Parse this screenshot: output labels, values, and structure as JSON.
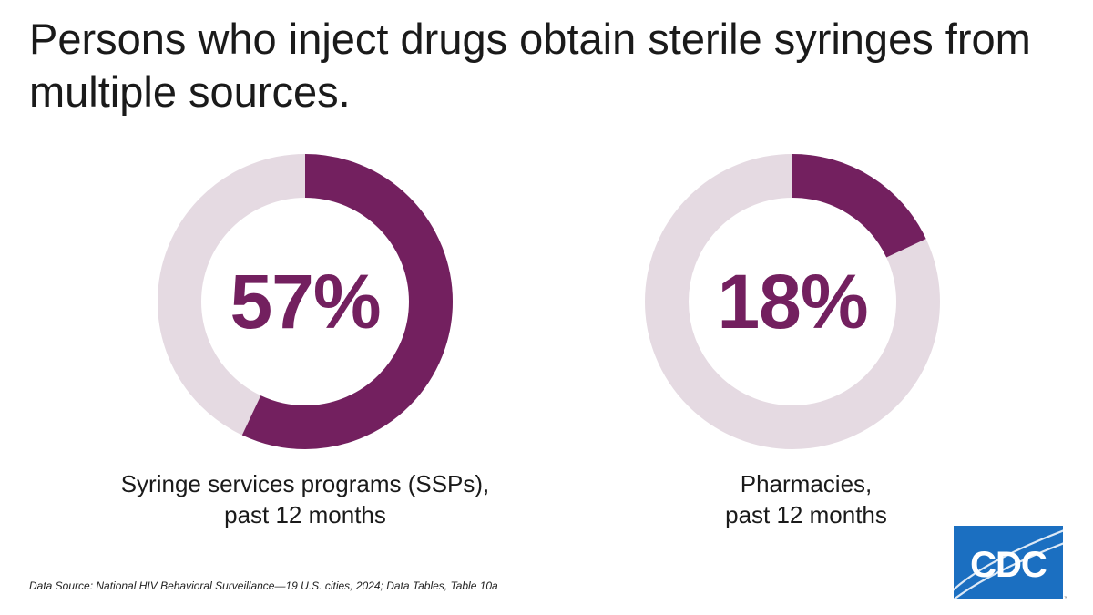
{
  "title": "Persons who inject drugs obtain sterile syringes from multiple sources.",
  "colors": {
    "accent": "#73205f",
    "track": "#e5dae2",
    "logo_blue": "#1b6fc1"
  },
  "chart_data": [
    {
      "type": "pie",
      "values": [
        57,
        43
      ],
      "center_label": "57%",
      "caption": [
        "Syringe services programs (SSPs),",
        "past 12 months"
      ]
    },
    {
      "type": "pie",
      "values": [
        18,
        82
      ],
      "center_label": "18%",
      "caption": [
        "Pharmacies,",
        "past 12 months"
      ]
    }
  ],
  "source": "Data Source: National HIV Behavioral Surveillance—19 U.S. cities, 2024; Data Tables, Table 10a",
  "logo": {
    "text": "CDC"
  }
}
